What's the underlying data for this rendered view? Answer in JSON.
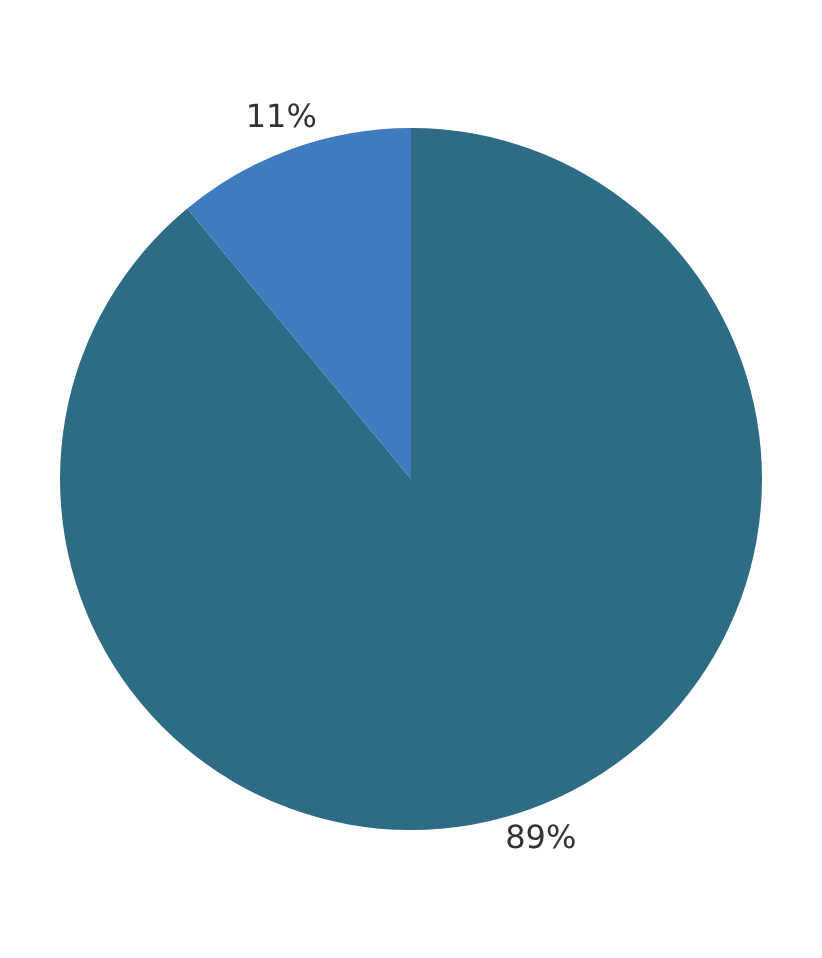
{
  "chart_data": {
    "type": "pie",
    "categories": [
      null,
      null
    ],
    "values": [
      89,
      11
    ],
    "colors": [
      "#2e6c85",
      "#3e7cbf"
    ],
    "value_labels": [
      "89%",
      "11%"
    ]
  }
}
